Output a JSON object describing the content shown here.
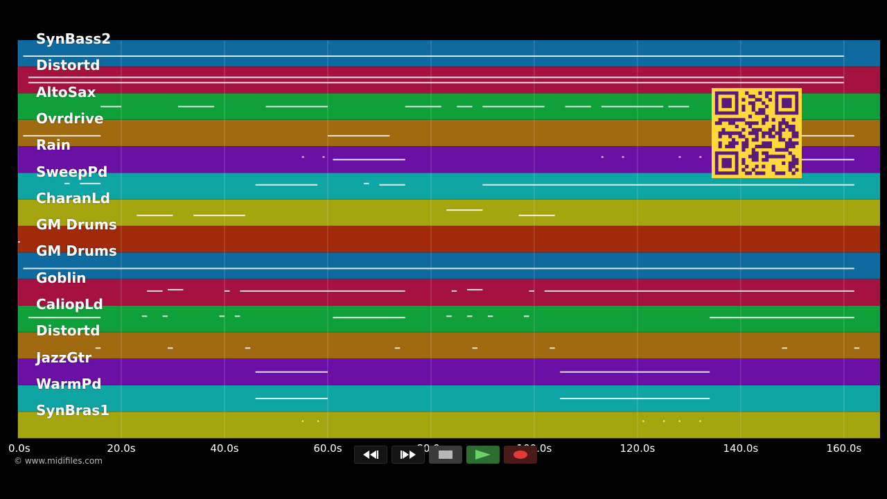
{
  "window": {
    "title": "MIDI piano roll"
  },
  "colors": {
    "background": "#000000",
    "lanes": [
      "#0f6aa0",
      "#a5123f",
      "#10a03a",
      "#a06a10",
      "#6a10a5",
      "#10a5a5",
      "#a5a510",
      "#a02a0a"
    ],
    "note": "#ffffff",
    "qr_fg": "#5a1a7a",
    "qr_bg": "#ffd83a"
  },
  "tracks": [
    {
      "name": "SynBass2",
      "color_index": 0,
      "notes": [
        [
          1,
          160,
          0.6
        ]
      ]
    },
    {
      "name": "Distortd",
      "color_index": 1,
      "notes": [
        [
          2,
          160,
          0.4
        ],
        [
          2,
          160,
          0.6
        ]
      ]
    },
    {
      "name": "AltoSax",
      "color_index": 2,
      "notes": [
        [
          16,
          20,
          0.5
        ],
        [
          31,
          38,
          0.5
        ],
        [
          48,
          60,
          0.5
        ],
        [
          75,
          82,
          0.5
        ],
        [
          85,
          88,
          0.5
        ],
        [
          90,
          100,
          0.5
        ],
        [
          100,
          102,
          0.5
        ],
        [
          106,
          111,
          0.5
        ],
        [
          113,
          125,
          0.5
        ],
        [
          126,
          130,
          0.5
        ]
      ]
    },
    {
      "name": "Ovrdrive",
      "color_index": 3,
      "notes": [
        [
          1,
          16,
          0.6
        ],
        [
          60,
          72,
          0.6
        ],
        [
          135,
          162,
          0.6
        ]
      ]
    },
    {
      "name": "Rain",
      "color_index": 4,
      "notes": [
        [
          55,
          55.4,
          0.4
        ],
        [
          59,
          59.4,
          0.4
        ],
        [
          61,
          75,
          0.5
        ],
        [
          113,
          113.4,
          0.4
        ],
        [
          117,
          117.4,
          0.4
        ],
        [
          128,
          128.4,
          0.4
        ],
        [
          132,
          132.4,
          0.4
        ],
        [
          140,
          162,
          0.5
        ]
      ]
    },
    {
      "name": "SweepPd",
      "color_index": 5,
      "notes": [
        [
          9,
          10,
          0.4
        ],
        [
          12,
          16,
          0.4
        ],
        [
          46,
          58,
          0.45
        ],
        [
          67,
          68,
          0.4
        ],
        [
          70,
          75,
          0.45
        ],
        [
          90,
          162,
          0.45
        ]
      ]
    },
    {
      "name": "CharanLd",
      "color_index": 6,
      "notes": [
        [
          23,
          30,
          0.6
        ],
        [
          34,
          44,
          0.6
        ],
        [
          83,
          90,
          0.4
        ],
        [
          97,
          104,
          0.6
        ]
      ]
    },
    {
      "name": "GM Drums",
      "color_index": 7,
      "notes": [
        [
          0,
          0.4,
          0.6
        ]
      ]
    },
    {
      "name": "GM Drums",
      "color_index": 0,
      "notes": [
        [
          1,
          162,
          0.6
        ]
      ]
    },
    {
      "name": "Goblin",
      "color_index": 1,
      "notes": [
        [
          25,
          28,
          0.45
        ],
        [
          29,
          32,
          0.4
        ],
        [
          40,
          41,
          0.45
        ],
        [
          43,
          75,
          0.45
        ],
        [
          84,
          85,
          0.45
        ],
        [
          87,
          90,
          0.4
        ],
        [
          99,
          100,
          0.45
        ],
        [
          102,
          162,
          0.45
        ]
      ]
    },
    {
      "name": "CaliopLd",
      "color_index": 2,
      "notes": [
        [
          2,
          16,
          0.45
        ],
        [
          24,
          25,
          0.4
        ],
        [
          28,
          29,
          0.4
        ],
        [
          39,
          40,
          0.4
        ],
        [
          42,
          43,
          0.4
        ],
        [
          61,
          75,
          0.45
        ],
        [
          83,
          84,
          0.4
        ],
        [
          87,
          88,
          0.4
        ],
        [
          91,
          92,
          0.4
        ],
        [
          98,
          99,
          0.4
        ],
        [
          134,
          162,
          0.45
        ]
      ]
    },
    {
      "name": "Distortd",
      "color_index": 3,
      "notes": [
        [
          15,
          16,
          0.6
        ],
        [
          29,
          30,
          0.6
        ],
        [
          44,
          45,
          0.6
        ],
        [
          73,
          74,
          0.6
        ],
        [
          88,
          89,
          0.6
        ],
        [
          103,
          104,
          0.6
        ],
        [
          148,
          149,
          0.6
        ],
        [
          162,
          163,
          0.6
        ]
      ]
    },
    {
      "name": "JazzGtr",
      "color_index": 4,
      "notes": [
        [
          46,
          60,
          0.5
        ],
        [
          105,
          134,
          0.5
        ]
      ]
    },
    {
      "name": "WarmPd",
      "color_index": 5,
      "notes": [
        [
          46,
          60,
          0.5
        ],
        [
          105,
          134,
          0.5
        ]
      ]
    },
    {
      "name": "SynBras1",
      "color_index": 6,
      "notes": [
        [
          55,
          55.3,
          0.35
        ],
        [
          58,
          58.3,
          0.35
        ],
        [
          121,
          121.3,
          0.35
        ],
        [
          125,
          125.3,
          0.35
        ],
        [
          128,
          128.3,
          0.35
        ],
        [
          132,
          132.3,
          0.35
        ]
      ]
    }
  ],
  "axis": {
    "ticks": [
      {
        "value": 0,
        "label": "0.0s"
      },
      {
        "value": 20,
        "label": "20.0s"
      },
      {
        "value": 40,
        "label": "40.0s"
      },
      {
        "value": 60,
        "label": "60.0s"
      },
      {
        "value": 80,
        "label": "80.0s"
      },
      {
        "value": 100,
        "label": "100.0s"
      },
      {
        "value": 120,
        "label": "120.0s"
      },
      {
        "value": 140,
        "label": "140.0s"
      },
      {
        "value": 160,
        "label": "160.0s"
      }
    ],
    "xlim": [
      0,
      167
    ]
  },
  "footer": {
    "copyright": "© www.midifiles.com"
  },
  "transport": {
    "buttons": [
      {
        "name": "rewind-button",
        "icon": "rewind-icon"
      },
      {
        "name": "fast-forward-button",
        "icon": "fast-forward-icon"
      },
      {
        "name": "stop-button",
        "icon": "stop-icon"
      },
      {
        "name": "play-button",
        "icon": "play-icon"
      },
      {
        "name": "record-button",
        "icon": "record-icon"
      }
    ]
  },
  "qr": {
    "icon": "qr-code-icon"
  }
}
